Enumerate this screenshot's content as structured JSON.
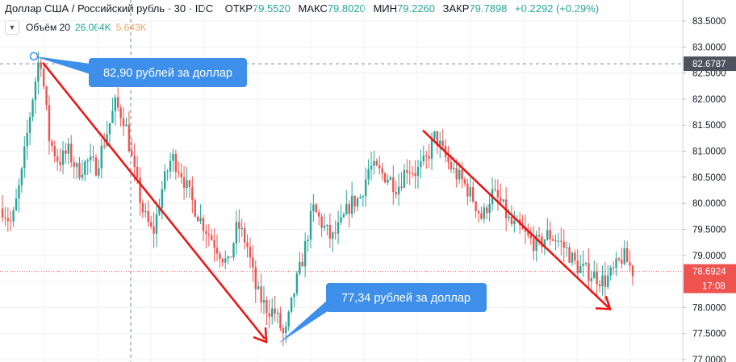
{
  "header": {
    "symbol": "Доллар США / Российский рубль",
    "interval": "30",
    "source": "IDC",
    "open_label": "ОТКР",
    "open_value": "79.5520",
    "high_label": "МАКС",
    "high_value": "79.8020",
    "low_label": "МИН",
    "low_value": "79.2260",
    "close_label": "ЗАКР",
    "close_value": "79.7898",
    "change_value": "+0.2292 (+0.29%)"
  },
  "volume": {
    "toggle_icon": "chevron-down-icon",
    "label": "Объём 20",
    "value1": "26.064K",
    "value2": "5.643K"
  },
  "chart_data": {
    "type": "candlestick",
    "ylim": [
      77.0,
      83.7
    ],
    "y_ticks": [
      "83.5000",
      "83.0000",
      "82.5000",
      "82.0000",
      "81.5000",
      "81.0000",
      "80.5000",
      "80.0000",
      "79.5000",
      "79.0000",
      "78.5000",
      "78.0000",
      "77.5000",
      "77.0000"
    ],
    "grid": true,
    "price_marks": [
      {
        "value": 82.6787,
        "label": "82.6787",
        "style": "crosshair"
      },
      {
        "value": 78.6924,
        "label": "78.6924",
        "time": "17:08",
        "style": "last-price"
      }
    ],
    "callouts": [
      {
        "text": "82,90 рублей за доллар",
        "anchor_value": 82.9
      },
      {
        "text": "77,34 рублей за доллар",
        "anchor_value": 77.34
      }
    ],
    "trend_lines": [
      {
        "from": 82.7,
        "to": 77.4
      },
      {
        "from": 81.4,
        "to": 78.0
      }
    ],
    "path": [
      79.9,
      79.6,
      80.5,
      81.8,
      82.9,
      81.2,
      80.8,
      81.0,
      80.6,
      80.8,
      80.7,
      81.3,
      81.9,
      81.6,
      80.6,
      79.8,
      79.4,
      80.3,
      80.9,
      80.6,
      80.1,
      79.7,
      79.4,
      79.1,
      78.8,
      79.6,
      79.2,
      78.3,
      78.0,
      77.9,
      77.4,
      78.3,
      79.0,
      79.9,
      79.6,
      79.3,
      79.6,
      80.0,
      80.1,
      80.7,
      80.6,
      80.5,
      80.3,
      80.7,
      80.6,
      80.8,
      81.3,
      80.9,
      80.6,
      80.4,
      80.1,
      79.7,
      80.2,
      80.0,
      79.6,
      79.5,
      79.3,
      79.2,
      79.4,
      79.3,
      79.1,
      78.8,
      78.7,
      78.6,
      78.5,
      78.7,
      79.0,
      78.7
    ]
  }
}
